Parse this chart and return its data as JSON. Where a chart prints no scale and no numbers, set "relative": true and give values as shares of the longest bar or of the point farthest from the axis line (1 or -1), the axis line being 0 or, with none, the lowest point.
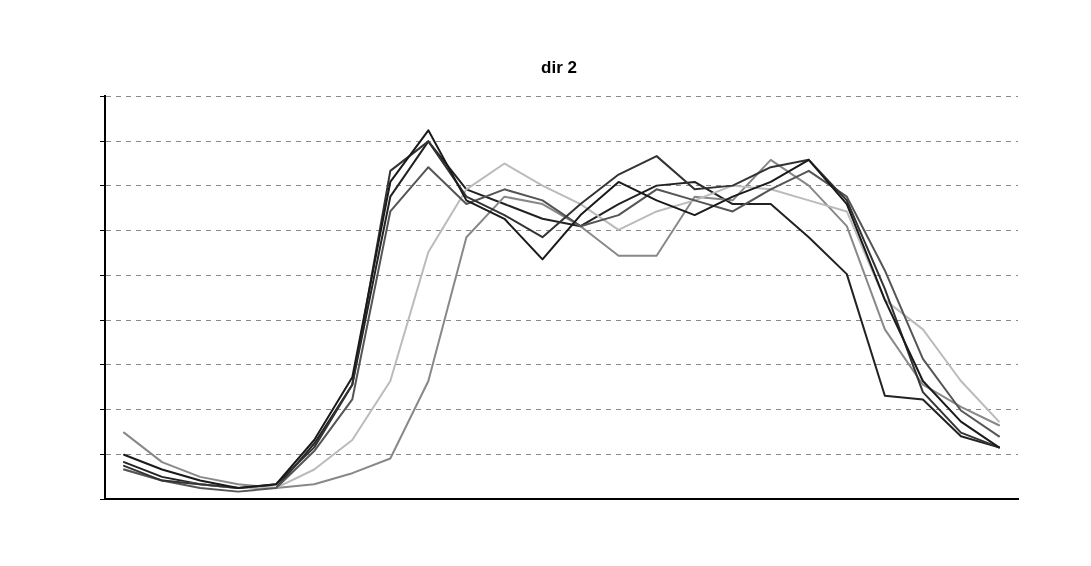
{
  "chart_data": {
    "type": "line",
    "title": "dir 2",
    "relative": true,
    "grid": "y",
    "categories": [
      null,
      null,
      null,
      null,
      null,
      null,
      null,
      null,
      null,
      null,
      null,
      null,
      null,
      null,
      null,
      null,
      null,
      null,
      null,
      null,
      null,
      null,
      null,
      null
    ],
    "series": [
      {
        "color": "#1a1a1a",
        "values": [
          0.12,
          0.08,
          0.05,
          0.03,
          0.04,
          0.16,
          0.33,
          0.86,
          1.0,
          0.81,
          0.76,
          0.65,
          0.77,
          0.86,
          0.81,
          0.77,
          0.82,
          0.86,
          0.92,
          0.8,
          0.54,
          0.32,
          0.21,
          0.14
        ]
      },
      {
        "color": "#333333",
        "values": [
          0.09,
          0.05,
          0.04,
          0.03,
          0.04,
          0.14,
          0.31,
          0.89,
          0.97,
          0.82,
          0.77,
          0.71,
          0.8,
          0.88,
          0.93,
          0.84,
          0.85,
          0.9,
          0.92,
          0.81,
          0.57,
          0.29,
          0.18,
          0.14
        ]
      },
      {
        "color": "#555555",
        "values": [
          0.08,
          0.05,
          0.03,
          0.02,
          0.03,
          0.13,
          0.27,
          0.78,
          0.9,
          0.8,
          0.84,
          0.81,
          0.74,
          0.77,
          0.84,
          0.81,
          0.78,
          0.84,
          0.89,
          0.82,
          0.62,
          0.38,
          0.24,
          0.17
        ]
      },
      {
        "color": "#bbbbbb",
        "values": [
          0.08,
          0.05,
          0.04,
          0.03,
          0.03,
          0.08,
          0.16,
          0.32,
          0.67,
          0.84,
          0.91,
          0.85,
          0.8,
          0.73,
          0.78,
          0.81,
          0.85,
          0.84,
          0.81,
          0.78,
          0.54,
          0.46,
          0.32,
          0.21
        ]
      },
      {
        "color": "#888888",
        "values": [
          0.18,
          0.1,
          0.06,
          0.04,
          0.03,
          0.04,
          0.07,
          0.11,
          0.32,
          0.71,
          0.82,
          0.8,
          0.74,
          0.66,
          0.66,
          0.82,
          0.81,
          0.92,
          0.85,
          0.74,
          0.46,
          0.31,
          0.25,
          0.2
        ]
      },
      {
        "color": "#222222",
        "values": [
          0.1,
          0.06,
          0.04,
          0.03,
          0.03,
          0.15,
          0.31,
          0.82,
          0.97,
          0.84,
          0.8,
          0.76,
          0.74,
          0.8,
          0.85,
          0.86,
          0.8,
          0.8,
          0.71,
          0.61,
          0.28,
          0.27,
          0.17,
          0.14
        ]
      }
    ]
  }
}
